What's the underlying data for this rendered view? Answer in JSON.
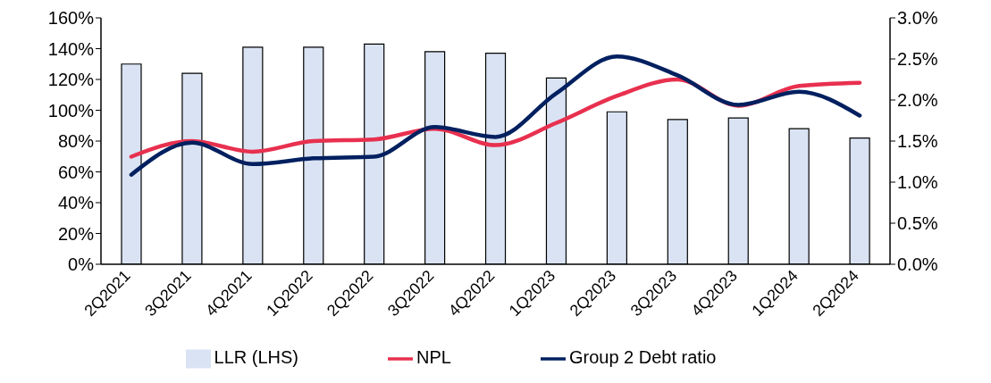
{
  "chart_data": {
    "type": "bar",
    "categories": [
      "2Q2021",
      "3Q2021",
      "4Q2021",
      "1Q2022",
      "2Q2022",
      "3Q2022",
      "4Q2022",
      "1Q2023",
      "2Q2023",
      "3Q2023",
      "4Q2023",
      "1Q2024",
      "2Q2024"
    ],
    "series": [
      {
        "name": "LLR (LHS)",
        "color": "#dae3f3",
        "values": [
          130,
          124,
          141,
          141,
          143,
          138,
          137,
          121,
          99,
          94,
          95,
          88,
          82
        ]
      },
      {
        "name": "NPL",
        "type": "line",
        "axis": "y2",
        "color": "#e8304f",
        "values": [
          1.31,
          1.5,
          1.37,
          1.5,
          1.52,
          1.65,
          1.45,
          1.72,
          2.05,
          2.25,
          1.93,
          2.17,
          2.21
        ]
      },
      {
        "name": "Group 2 Debt ratio",
        "type": "line",
        "axis": "y2",
        "color": "#002060",
        "values": [
          1.09,
          1.48,
          1.22,
          1.29,
          1.31,
          1.67,
          1.55,
          2.08,
          2.53,
          2.3,
          1.94,
          2.1,
          1.81
        ]
      }
    ],
    "ylim": [
      0,
      160
    ],
    "yticks": [
      {
        "value": 0,
        "label": "0%"
      },
      {
        "value": 20,
        "label": "20%"
      },
      {
        "value": 40,
        "label": "40%"
      },
      {
        "value": 60,
        "label": "60%"
      },
      {
        "value": 80,
        "label": "80%"
      },
      {
        "value": 100,
        "label": "100%"
      },
      {
        "value": 120,
        "label": "120%"
      },
      {
        "value": 140,
        "label": "140%"
      },
      {
        "value": 160,
        "label": "160%"
      }
    ],
    "y2lim": [
      0,
      3
    ],
    "y2ticks": [
      {
        "value": 0,
        "label": "0.0%"
      },
      {
        "value": 0.5,
        "label": "0.5%"
      },
      {
        "value": 1,
        "label": "1.0%"
      },
      {
        "value": 1.5,
        "label": "1.5%"
      },
      {
        "value": 2,
        "label": "2.0%"
      },
      {
        "value": 2.5,
        "label": "2.5%"
      },
      {
        "value": 3,
        "label": "3.0%"
      }
    ],
    "grid": false,
    "legend": "bottom",
    "marker": "none",
    "line_style": "solid"
  }
}
